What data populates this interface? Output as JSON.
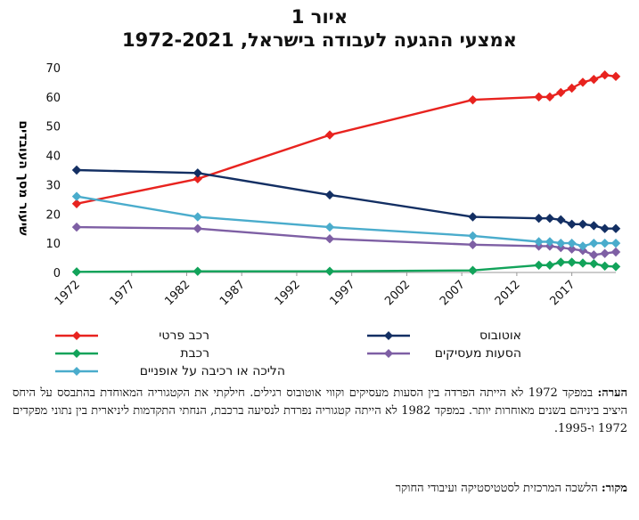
{
  "figure": {
    "title_line1": "איור 1",
    "title_line2": "אמצעי ההגעה לעבודה בישראל, 1972-2021"
  },
  "chart_data": {
    "type": "line",
    "ylabel": "שיעור מסך העובדים",
    "ylim": [
      0,
      70
    ],
    "yticks": [
      0,
      10,
      20,
      30,
      40,
      50,
      60,
      70
    ],
    "xlim": [
      1972,
      2021
    ],
    "xticks": [
      1972,
      1977,
      1982,
      1987,
      1992,
      1997,
      2002,
      2007,
      2012,
      2017
    ],
    "grid": false,
    "legend_position": "bottom",
    "series": [
      {
        "name": "רכב פרטי",
        "color": "#e8231f",
        "x": [
          1972,
          1983,
          1995,
          2008,
          2014,
          2015,
          2016,
          2017,
          2018,
          2019,
          2020,
          2021
        ],
        "y": [
          23.5,
          32,
          47,
          59,
          60,
          60,
          61.5,
          63,
          65,
          66,
          67.5,
          67
        ]
      },
      {
        "name": "אוטובוס",
        "color": "#132f63",
        "x": [
          1972,
          1983,
          1995,
          2008,
          2014,
          2015,
          2016,
          2017,
          2018,
          2019,
          2020,
          2021
        ],
        "y": [
          35,
          34,
          26.5,
          19,
          18.5,
          18.5,
          18,
          16.5,
          16.5,
          16,
          15,
          15
        ]
      },
      {
        "name": "רכבת",
        "color": "#12a35a",
        "x": [
          1972,
          1983,
          1995,
          2008,
          2014,
          2015,
          2016,
          2017,
          2018,
          2019,
          2020,
          2021
        ],
        "y": [
          0.2,
          0.4,
          0.4,
          0.7,
          2.5,
          2.5,
          3.5,
          3.5,
          3.2,
          3,
          2.2,
          2
        ]
      },
      {
        "name": "הסעות מעסיקים",
        "color": "#7e5fa4",
        "x": [
          1972,
          1983,
          1995,
          2008,
          2014,
          2015,
          2016,
          2017,
          2018,
          2019,
          2020,
          2021
        ],
        "y": [
          15.5,
          15,
          11.5,
          9.5,
          9,
          9,
          8.5,
          8,
          7.5,
          6,
          6.5,
          7
        ]
      },
      {
        "name": "הליכה או רכיבה על אופניים",
        "color": "#4aaccc",
        "x": [
          1972,
          1983,
          1995,
          2008,
          2014,
          2015,
          2016,
          2017,
          2018,
          2019,
          2020,
          2021
        ],
        "y": [
          26,
          19,
          15.5,
          12.5,
          10.5,
          10.5,
          10,
          10,
          9,
          10,
          10,
          10
        ]
      }
    ]
  },
  "note": {
    "label": "הערה:",
    "text": " במפקד 1972 לא הייתה הפרדה בין הסעות מעסיקים וקווי אוטובוס רגילים. חילקתי את הקטגוריה המאוחדת בהתבסס על היחס היציב ביניהם בשנים מאוחרות יותר. במפקד 1982 לא הייתה קטגוריה נפרדת לנסיעה ברכבת, הנחתי התקדמות ליניארית בין נתוני מפקדים 1972 ו-1995."
  },
  "source": {
    "label": "מקור:",
    "text": " הלשכה המרכזית לסטטיסטיקה ועיבודי החוקר"
  }
}
